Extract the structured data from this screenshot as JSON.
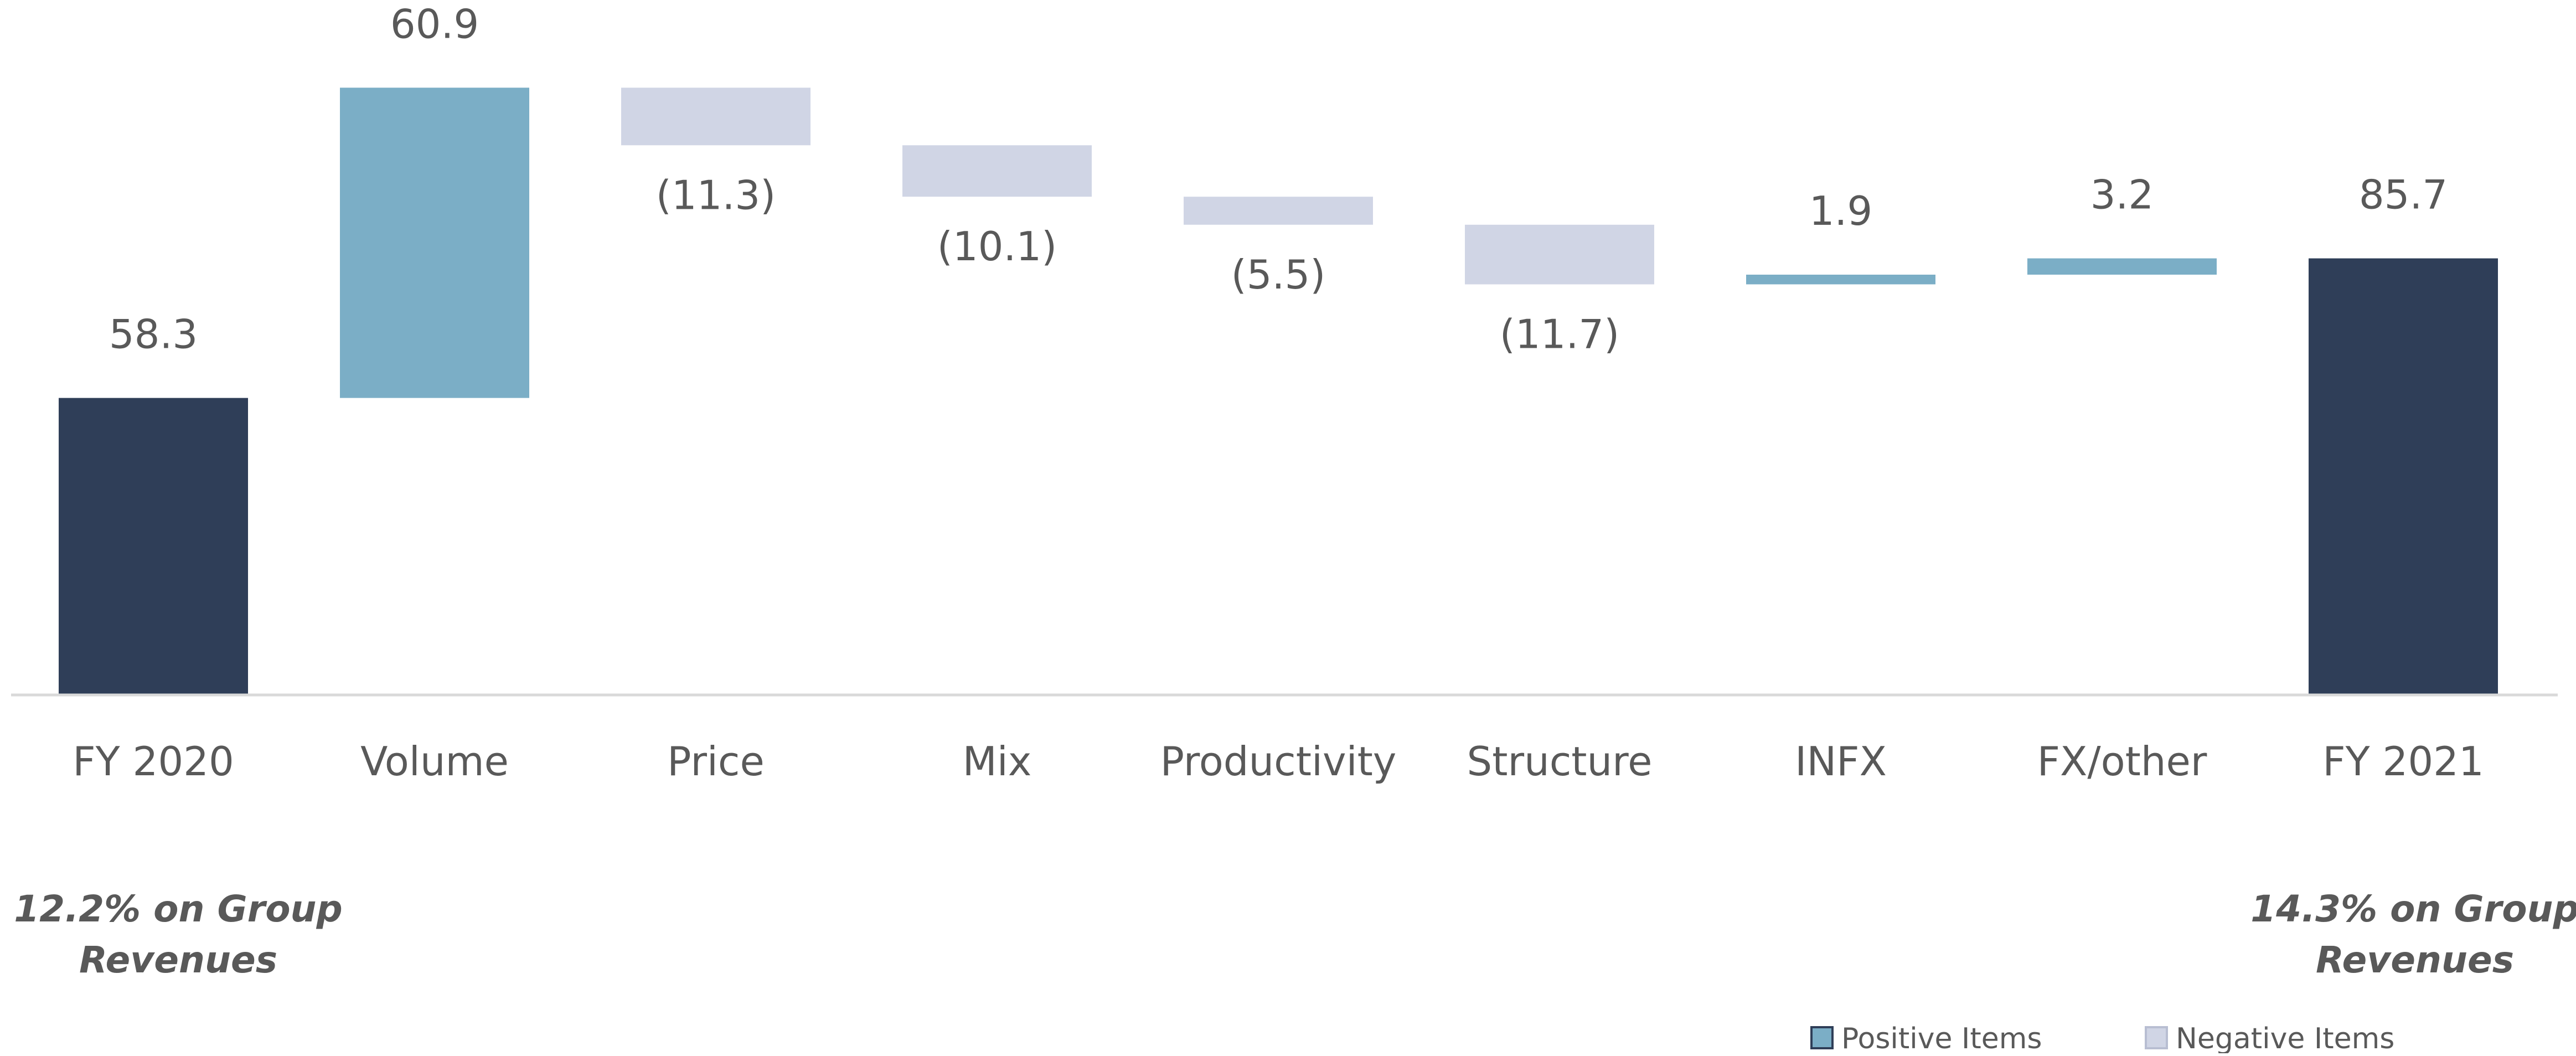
{
  "chart_data": {
    "type": "bar",
    "subtype": "waterfall",
    "categories": [
      "FY 2020",
      "Volume",
      "Price",
      "Mix",
      "Productivity",
      "Structure",
      "INFX",
      "FX/other",
      "FY 2021"
    ],
    "values": [
      58.3,
      60.9,
      -11.3,
      -10.1,
      -5.5,
      -11.7,
      1.9,
      3.2,
      85.7
    ],
    "kinds": [
      "total",
      "positive",
      "negative",
      "negative",
      "negative",
      "negative",
      "positive",
      "positive",
      "total"
    ],
    "value_labels": [
      "58.3",
      "60.9",
      "(11.3)",
      "(10.1)",
      "(5.5)",
      "(11.7)",
      "1.9",
      "3.2",
      "85.7"
    ],
    "notes": [
      {
        "lines": [
          "12.2% on Group",
          "Revenues"
        ],
        "category": "FY 2020"
      },
      {
        "lines": [
          "14.3% on Group",
          "Revenues"
        ],
        "category": "FY 2021"
      }
    ],
    "legend": {
      "position": "bottom-right",
      "items": [
        {
          "label": "Positive Items",
          "color": "#7BAEC6"
        },
        {
          "label": "Negative Items",
          "color": "#D0D5E5"
        }
      ]
    },
    "colors": {
      "total": "#2F3E58",
      "positive": "#7BAEC6",
      "negative": "#D0D5E5",
      "label": "#595959",
      "axis": "#D9D9D9"
    },
    "ylim": [
      0,
      120
    ],
    "grid": false
  }
}
